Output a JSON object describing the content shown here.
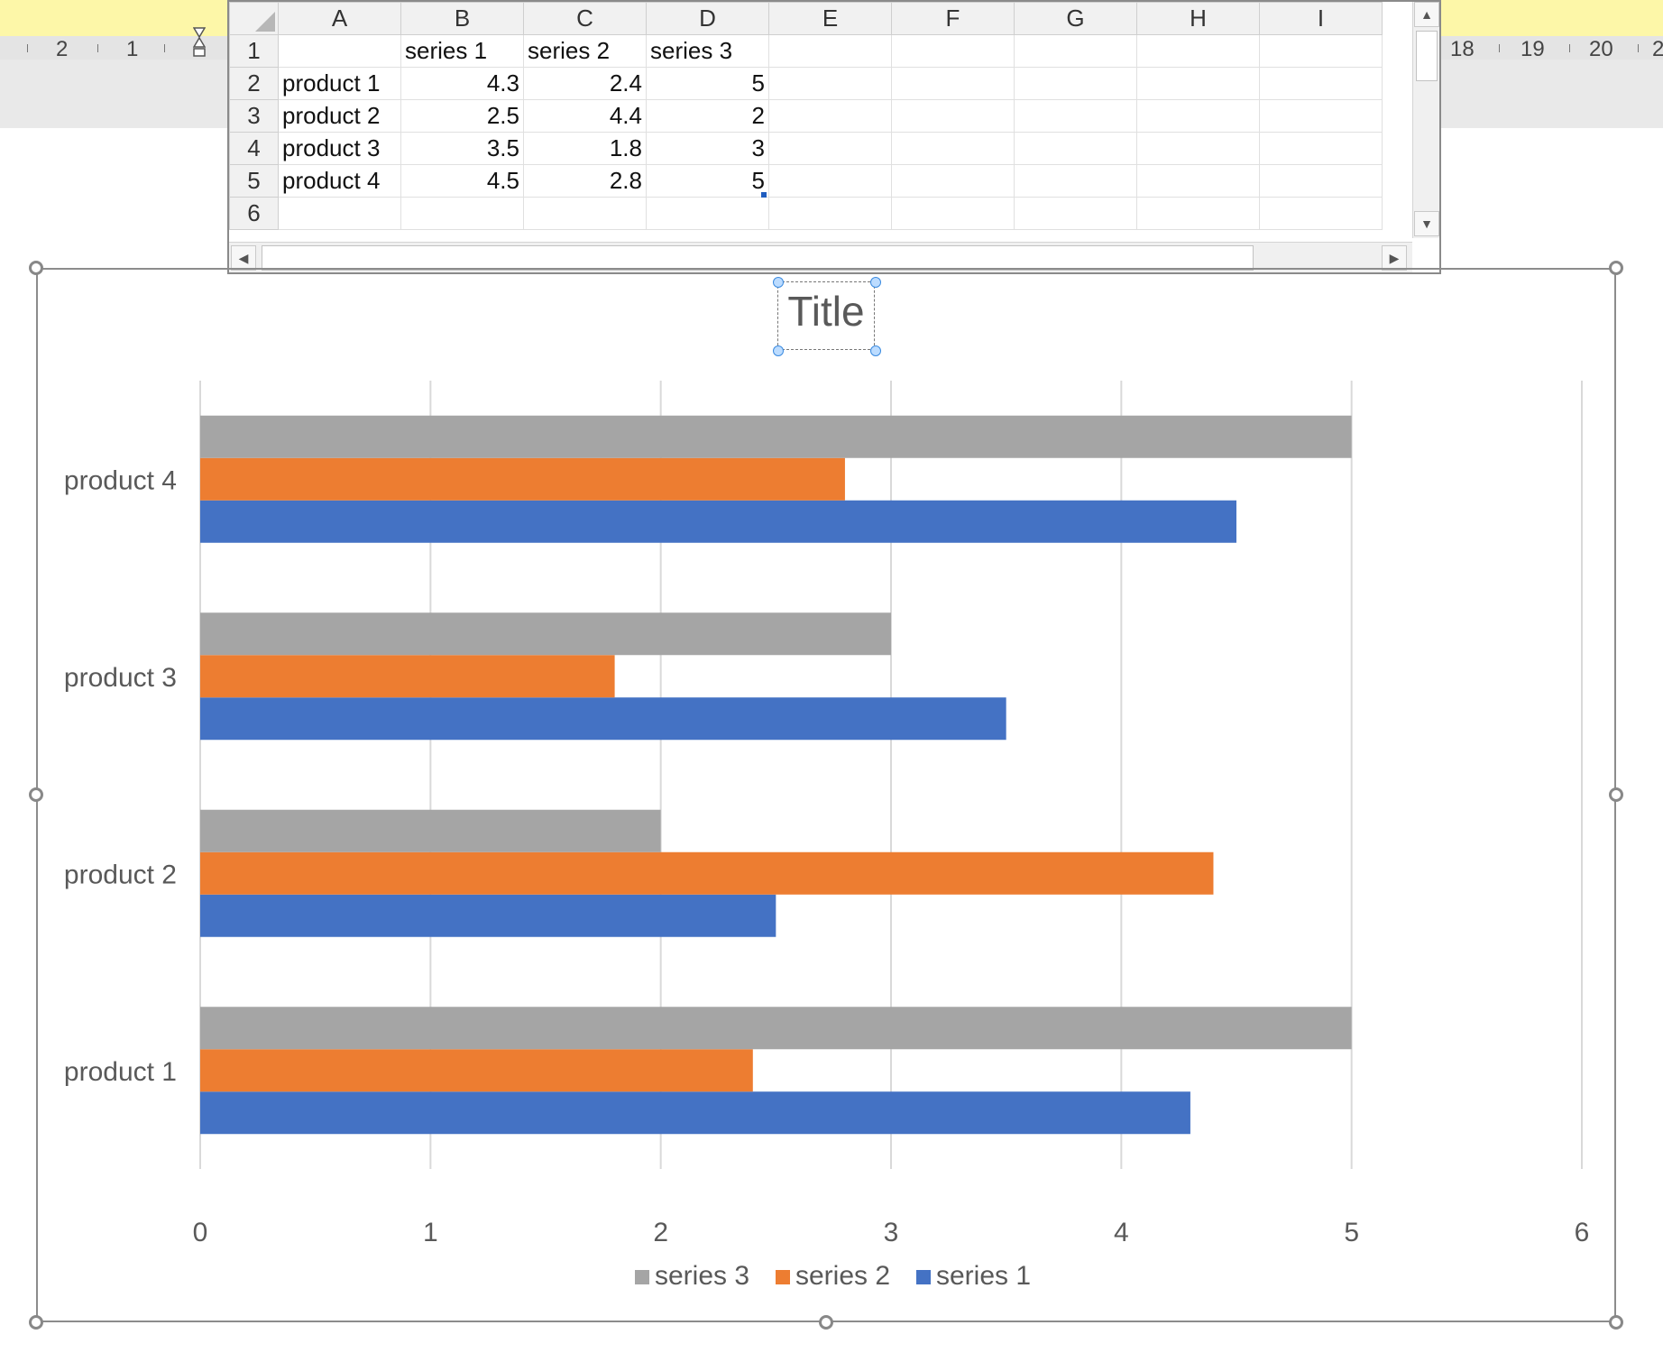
{
  "ruler": {
    "numbers_left": [
      "2",
      "1"
    ],
    "numbers_right": [
      "18",
      "19",
      "20",
      "2"
    ]
  },
  "spreadsheet": {
    "columns": [
      "A",
      "B",
      "C",
      "D",
      "E",
      "F",
      "G",
      "H",
      "I"
    ],
    "rows": [
      {
        "n": "1",
        "cells": [
          "",
          "series 1",
          "series 2",
          "series 3",
          "",
          "",
          "",
          "",
          ""
        ]
      },
      {
        "n": "2",
        "cells": [
          "product 1",
          "4.3",
          "2.4",
          "5",
          "",
          "",
          "",
          "",
          ""
        ]
      },
      {
        "n": "3",
        "cells": [
          "product 2",
          "2.5",
          "4.4",
          "2",
          "",
          "",
          "",
          "",
          ""
        ]
      },
      {
        "n": "4",
        "cells": [
          "product 3",
          "3.5",
          "1.8",
          "3",
          "",
          "",
          "",
          "",
          ""
        ]
      },
      {
        "n": "5",
        "cells": [
          "product 4",
          "4.5",
          "2.8",
          "5",
          "",
          "",
          "",
          "",
          ""
        ]
      },
      {
        "n": "6",
        "cells": [
          "",
          "",
          "",
          "",
          "",
          "",
          "",
          "",
          ""
        ]
      }
    ]
  },
  "chart_data": {
    "type": "bar",
    "orientation": "horizontal",
    "title": "Title",
    "categories": [
      "product 1",
      "product 2",
      "product 3",
      "product 4"
    ],
    "series": [
      {
        "name": "series 1",
        "values": [
          4.3,
          2.5,
          3.5,
          4.5
        ],
        "color": "#4472c4"
      },
      {
        "name": "series 2",
        "values": [
          2.4,
          4.4,
          1.8,
          2.8
        ],
        "color": "#ed7d31"
      },
      {
        "name": "series 3",
        "values": [
          5,
          2,
          3,
          5
        ],
        "color": "#a5a5a5"
      }
    ],
    "xlim": [
      0,
      6
    ],
    "x_ticks": [
      "0",
      "1",
      "2",
      "3",
      "4",
      "5",
      "6"
    ],
    "grid": true,
    "legend_position": "bottom",
    "legend_order": [
      "series 3",
      "series 2",
      "series 1"
    ]
  },
  "icons": {
    "scroll_up": "triangle-up-icon",
    "scroll_down": "triangle-down-icon",
    "scroll_left": "triangle-left-icon",
    "scroll_right": "triangle-right-icon"
  }
}
